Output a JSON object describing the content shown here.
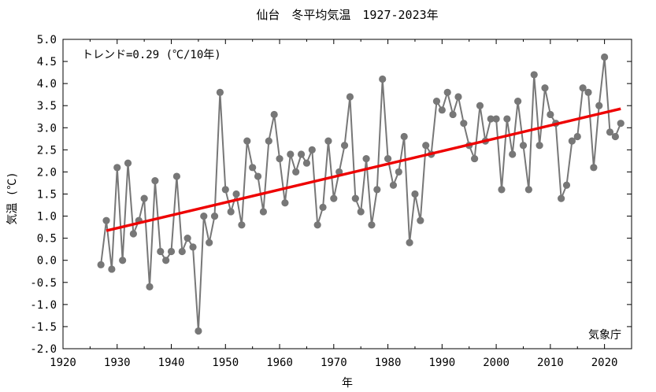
{
  "chart_data": {
    "type": "line",
    "title": "仙台　冬平均気温　1927-2023年",
    "xlabel": "年",
    "ylabel": "気温 (℃)",
    "xlim": [
      1920,
      2025
    ],
    "ylim": [
      -2.0,
      5.0
    ],
    "x_ticks": [
      1920,
      1930,
      1940,
      1950,
      1960,
      1970,
      1980,
      1990,
      2000,
      2010,
      2020
    ],
    "x_tick_labels": [
      "1920",
      "1930",
      "1940",
      "1950",
      "1960",
      "1970",
      "1980",
      "1990",
      "2000",
      "2010",
      "2020"
    ],
    "y_ticks": [
      -2.0,
      -1.5,
      -1.0,
      -0.5,
      0.0,
      0.5,
      1.0,
      1.5,
      2.0,
      2.5,
      3.0,
      3.5,
      4.0,
      4.5,
      5.0
    ],
    "y_tick_labels": [
      "-2.0",
      "-1.5",
      "-1.0",
      "-0.5",
      "0.0",
      "0.5",
      "1.0",
      "1.5",
      "2.0",
      "2.5",
      "3.0",
      "3.5",
      "4.0",
      "4.5",
      "5.0"
    ],
    "grid": false,
    "trend_annotation": "トレンド=0.29 (℃/10年)",
    "source_label": "気象庁",
    "colors": {
      "series": "#777777",
      "trend": "#ee0000",
      "frame": "#000000"
    },
    "x": [
      1927,
      1928,
      1929,
      1930,
      1931,
      1932,
      1933,
      1934,
      1935,
      1936,
      1937,
      1938,
      1939,
      1940,
      1941,
      1942,
      1943,
      1944,
      1945,
      1946,
      1947,
      1948,
      1949,
      1950,
      1951,
      1952,
      1953,
      1954,
      1955,
      1956,
      1957,
      1958,
      1959,
      1960,
      1961,
      1962,
      1963,
      1964,
      1965,
      1966,
      1967,
      1968,
      1969,
      1970,
      1971,
      1972,
      1973,
      1974,
      1975,
      1976,
      1977,
      1978,
      1979,
      1980,
      1981,
      1982,
      1983,
      1984,
      1985,
      1986,
      1987,
      1988,
      1989,
      1990,
      1991,
      1992,
      1993,
      1994,
      1995,
      1996,
      1997,
      1998,
      1999,
      2000,
      2001,
      2002,
      2003,
      2004,
      2005,
      2006,
      2007,
      2008,
      2009,
      2010,
      2011,
      2012,
      2013,
      2014,
      2015,
      2016,
      2017,
      2018,
      2019,
      2020,
      2021,
      2022,
      2023
    ],
    "series": [
      {
        "values": [
          -0.1,
          0.9,
          -0.2,
          2.1,
          0.0,
          2.2,
          0.6,
          0.9,
          1.4,
          -0.6,
          1.8,
          0.2,
          0.0,
          0.2,
          1.9,
          0.2,
          0.5,
          0.3,
          -1.6,
          1.0,
          0.4,
          1.0,
          3.8,
          1.6,
          1.1,
          1.5,
          0.8,
          2.7,
          2.1,
          1.9,
          1.1,
          2.7,
          3.3,
          2.3,
          1.3,
          2.4,
          2.0,
          2.4,
          2.2,
          2.5,
          0.8,
          1.2,
          2.7,
          1.4,
          2.0,
          2.6,
          3.7,
          1.4,
          1.1,
          2.3,
          0.8,
          1.6,
          4.1,
          2.3,
          1.7,
          2.0,
          2.8,
          0.4,
          1.5,
          0.9,
          2.6,
          2.4,
          3.6,
          3.4,
          3.8,
          3.3,
          3.7,
          3.1,
          2.6,
          2.3,
          3.5,
          2.7,
          3.2,
          3.2,
          1.6,
          3.2,
          2.4,
          3.6,
          2.6,
          1.6,
          4.2,
          2.6,
          3.9,
          3.3,
          3.1,
          1.4,
          1.7,
          2.7,
          2.8,
          3.9,
          3.8,
          2.1,
          3.5,
          4.6,
          2.9,
          2.8,
          3.1
        ]
      }
    ],
    "trend_line": {
      "x": [
        1928,
        2023
      ],
      "y": [
        0.67,
        3.43
      ]
    }
  }
}
